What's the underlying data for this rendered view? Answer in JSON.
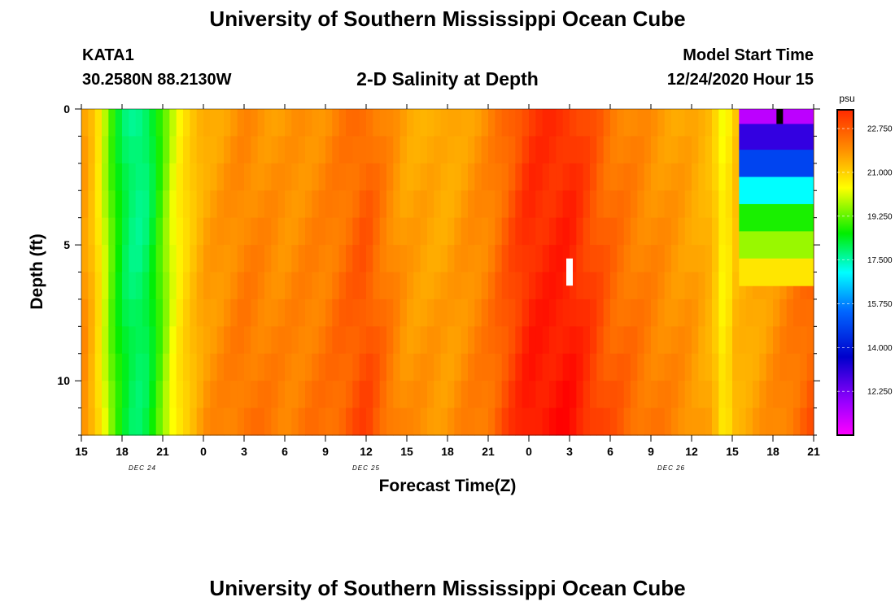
{
  "header": {
    "title": "University of Southern Mississippi Ocean Cube",
    "station": "KATA1",
    "coords": "30.2580N 88.2130W",
    "subtitle": "2-D Salinity at Depth",
    "start_label": "Model Start Time",
    "start_value": "12/24/2020 Hour 15"
  },
  "footer": {
    "title": "University of Southern Mississippi Ocean Cube"
  },
  "chart_data": {
    "type": "heatmap",
    "title": "2-D Salinity at Depth",
    "xlabel": "Forecast Time(Z)",
    "ylabel": "Depth (ft)",
    "x_ticks": [
      "15",
      "18",
      "21",
      "0",
      "3",
      "6",
      "9",
      "12",
      "15",
      "18",
      "21",
      "0",
      "3",
      "6",
      "9",
      "12",
      "15",
      "18",
      "21"
    ],
    "date_labels": [
      {
        "label": "DEC 24",
        "at_hour": 4.5
      },
      {
        "label": "DEC 25",
        "at_hour": 21
      },
      {
        "label": "DEC 26",
        "at_hour": 43.5
      }
    ],
    "x_range_hours": [
      0,
      54
    ],
    "y_ticks": [
      0,
      5,
      10
    ],
    "y_range_ft": [
      0,
      12
    ],
    "colorbar_unit": "psu",
    "colorbar_ticks": [
      "22.750",
      "21.000",
      "19.250",
      "17.500",
      "15.750",
      "14.000",
      "12.250"
    ],
    "colorbar_range": [
      10.5,
      23.5
    ],
    "salinity_profile_by_hour": [
      [
        0,
        21.8
      ],
      [
        1,
        20.8
      ],
      [
        2,
        18.6
      ],
      [
        3,
        17.3
      ],
      [
        4,
        16.8
      ],
      [
        5,
        17.1
      ],
      [
        6,
        18.4
      ],
      [
        7,
        19.8
      ],
      [
        8,
        20.7
      ],
      [
        9,
        21.4
      ],
      [
        12,
        21.9
      ],
      [
        15,
        21.7
      ],
      [
        18,
        21.9
      ],
      [
        21,
        22.4
      ],
      [
        24,
        21.5
      ],
      [
        27,
        21.4
      ],
      [
        30,
        21.9
      ],
      [
        33,
        22.9
      ],
      [
        36,
        23.0
      ],
      [
        39,
        22.2
      ],
      [
        42,
        21.8
      ],
      [
        45,
        21.5
      ],
      [
        46.5,
        21.1
      ],
      [
        47.5,
        19.5
      ],
      [
        48,
        20.9
      ],
      [
        54,
        22.2
      ]
    ],
    "deep_salinity_offset": 0.4,
    "upper_right_cells": [
      {
        "hours": [
          48.5,
          54
        ],
        "depth_ft": [
          0,
          0.55
        ],
        "salinity": 11.5
      },
      {
        "hours": [
          48.5,
          54
        ],
        "depth_ft": [
          0.55,
          1.5
        ],
        "salinity": 13.0
      },
      {
        "hours": [
          48.5,
          54
        ],
        "depth_ft": [
          1.5,
          2.5
        ],
        "salinity": 14.5
      },
      {
        "hours": [
          48.5,
          54
        ],
        "depth_ft": [
          2.5,
          3.5
        ],
        "salinity": 16.2
      },
      {
        "hours": [
          48.5,
          54
        ],
        "depth_ft": [
          3.5,
          4.5
        ],
        "salinity": 18.0
      },
      {
        "hours": [
          48.5,
          54
        ],
        "depth_ft": [
          4.5,
          5.5
        ],
        "salinity": 19.0
      },
      {
        "hours": [
          48.5,
          54
        ],
        "depth_ft": [
          5.5,
          6.5
        ],
        "salinity": 20.3
      }
    ],
    "markers": [
      {
        "type": "white-bar",
        "hour": 36,
        "depth_ft": [
          5.5,
          6.5
        ]
      },
      {
        "type": "black-bar",
        "hour": 51.5,
        "depth_ft": [
          0,
          0.55
        ]
      }
    ]
  }
}
